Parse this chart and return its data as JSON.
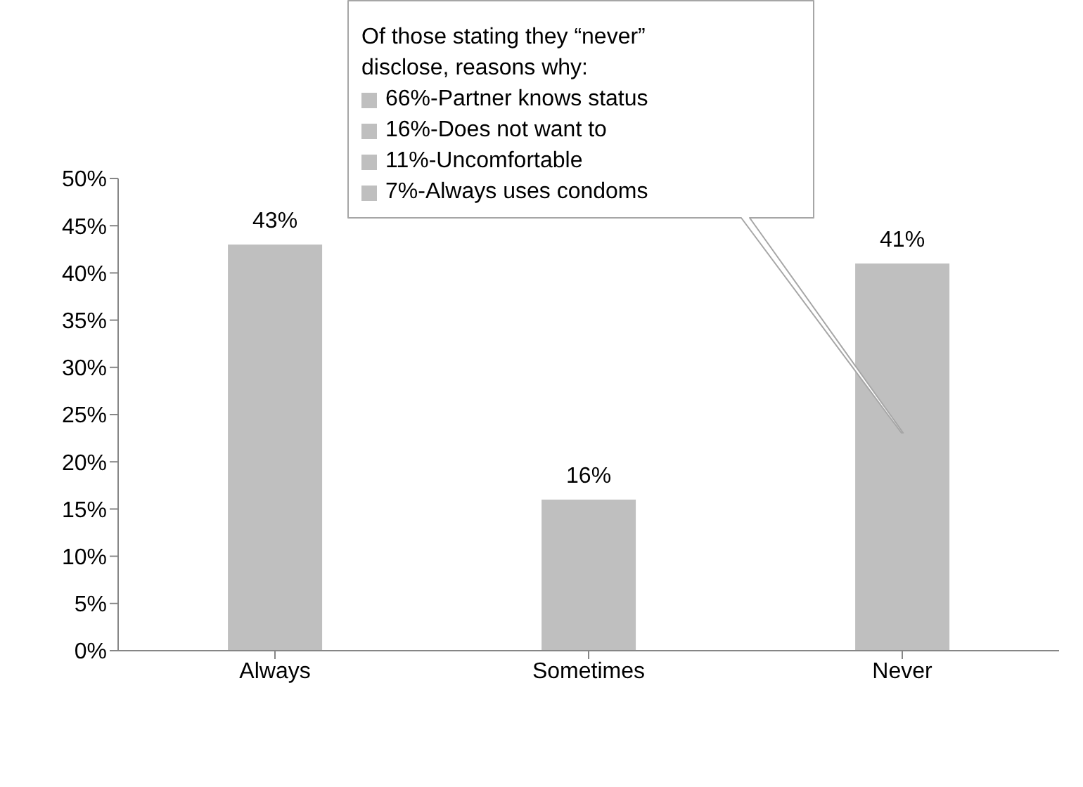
{
  "chart_data": {
    "type": "bar",
    "categories": [
      "Always",
      "Sometimes",
      "Never"
    ],
    "values": [
      43,
      16,
      41
    ],
    "color": "#bfbfbf",
    "value_labels": [
      "43%",
      "16%",
      "41%"
    ],
    "ylim": [
      0,
      50
    ],
    "yticks": [
      {
        "value": 0,
        "label": "0%"
      },
      {
        "value": 5,
        "label": "5%"
      },
      {
        "value": 10,
        "label": "10%"
      },
      {
        "value": 15,
        "label": "15%"
      },
      {
        "value": 20,
        "label": "20%"
      },
      {
        "value": 25,
        "label": "25%"
      },
      {
        "value": 30,
        "label": "30%"
      },
      {
        "value": 35,
        "label": "35%"
      },
      {
        "value": 40,
        "label": "40%"
      },
      {
        "value": 45,
        "label": "45%"
      },
      {
        "value": 50,
        "label": "50%"
      }
    ],
    "grid": false,
    "legend": false,
    "annotations": [
      "Of those stating they “never” disclose, reasons why:",
      "66%-Partner knows status",
      "16%-Does not want to",
      "11%-Uncomfortable",
      "7%-Always uses condoms"
    ]
  }
}
